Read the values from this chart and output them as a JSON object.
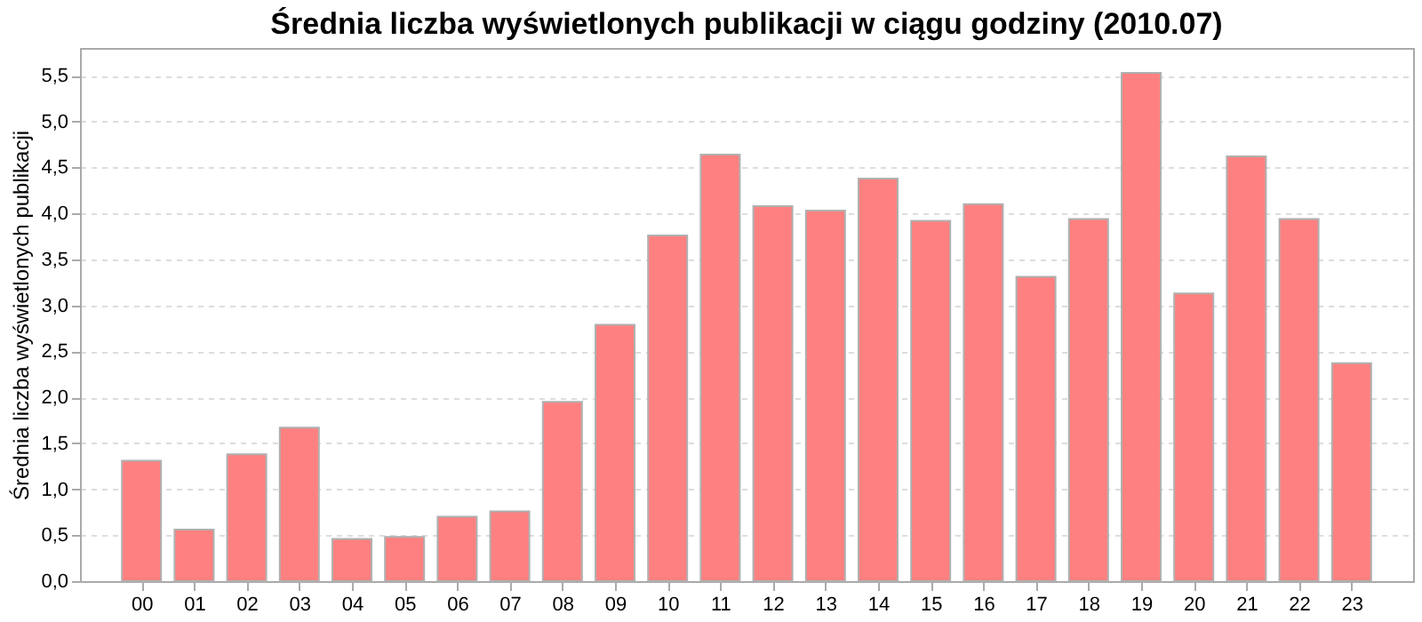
{
  "chart_data": {
    "type": "bar",
    "title": "Średnia liczba wyświetlonych publikacji w ciągu godziny (2010.07)",
    "ylabel": "Średnia liczba wyświetlonych publikacji",
    "categories": [
      "00",
      "01",
      "02",
      "03",
      "04",
      "05",
      "06",
      "07",
      "08",
      "09",
      "10",
      "11",
      "12",
      "13",
      "14",
      "15",
      "16",
      "17",
      "18",
      "19",
      "20",
      "21",
      "22",
      "23"
    ],
    "values": [
      1.31,
      0.56,
      1.38,
      1.67,
      0.46,
      0.48,
      0.7,
      0.76,
      1.95,
      2.79,
      3.76,
      4.64,
      4.08,
      4.03,
      4.38,
      3.92,
      4.1,
      3.31,
      3.94,
      5.53,
      3.13,
      4.62,
      3.94,
      2.37
    ],
    "color": "#ff8080",
    "ylim": [
      0,
      5.8
    ],
    "yticks": [
      {
        "value": 0,
        "label": "0,0"
      },
      {
        "value": 0.5,
        "label": "0,5"
      },
      {
        "value": 1,
        "label": "1,0"
      },
      {
        "value": 1.5,
        "label": "1,5"
      },
      {
        "value": 2,
        "label": "2,0"
      },
      {
        "value": 2.5,
        "label": "2,5"
      },
      {
        "value": 3,
        "label": "3,0"
      },
      {
        "value": 3.5,
        "label": "3,5"
      },
      {
        "value": 4,
        "label": "4,0"
      },
      {
        "value": 4.5,
        "label": "4,5"
      },
      {
        "value": 5,
        "label": "5,0"
      },
      {
        "value": 5.5,
        "label": "5,5"
      }
    ],
    "grid": "y"
  }
}
